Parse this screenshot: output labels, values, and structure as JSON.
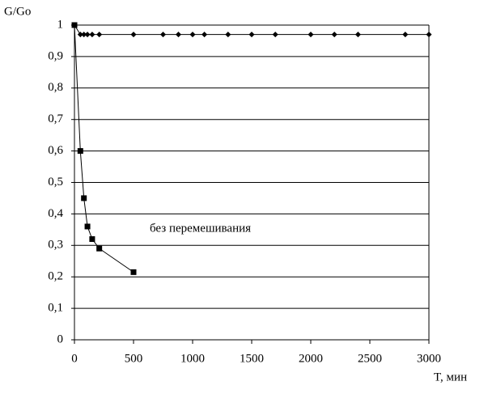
{
  "chart_data": {
    "type": "line",
    "y_label": "G/Go",
    "x_label": "T, мин",
    "annotation": "без перемешивания",
    "xlim": [
      0,
      3000
    ],
    "xticks": [
      0,
      500,
      1000,
      1500,
      2000,
      2500,
      3000
    ],
    "ylim": [
      0,
      1
    ],
    "yticks": [
      0,
      {
        "value": 0.1,
        "label": "0,1"
      },
      {
        "value": 0.2,
        "label": "0,2"
      },
      {
        "value": 0.3,
        "label": "0,3"
      },
      {
        "value": 0.4,
        "label": "0,4"
      },
      {
        "value": 0.5,
        "label": "0,5"
      },
      {
        "value": 0.6,
        "label": "0,6"
      },
      {
        "value": 0.7,
        "label": "0,7"
      },
      {
        "value": 0.8,
        "label": "0,8"
      },
      {
        "value": 0.9,
        "label": "0,9"
      },
      1
    ],
    "grid": true,
    "series": [
      {
        "color": "#000000",
        "marker": "diamond",
        "x": [
          0,
          50,
          80,
          110,
          150,
          210,
          500,
          750,
          880,
          1000,
          1100,
          1300,
          1500,
          1700,
          2000,
          2200,
          2400,
          2800,
          3000
        ],
        "values": [
          1,
          0.97,
          0.97,
          0.97,
          0.97,
          0.97,
          0.97,
          0.97,
          0.97,
          0.97,
          0.97,
          0.97,
          0.97,
          0.97,
          0.97,
          0.97,
          0.97,
          0.97,
          0.97
        ]
      },
      {
        "color": "#000000",
        "marker": "square",
        "x": [
          0,
          50,
          80,
          110,
          150,
          210,
          500
        ],
        "values": [
          1,
          0.6,
          0.45,
          0.36,
          0.32,
          0.29,
          0.215
        ]
      }
    ]
  }
}
